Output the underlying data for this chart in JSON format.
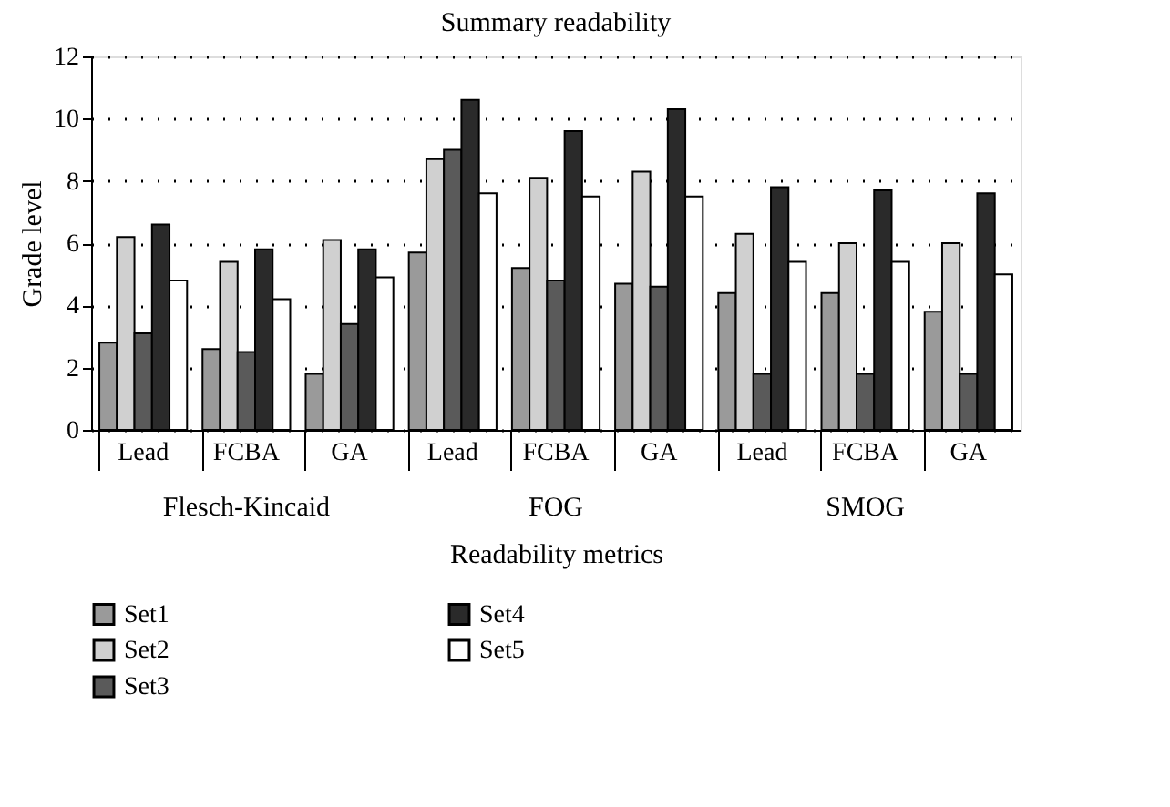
{
  "chart_data": {
    "type": "bar",
    "title": "Summary readability",
    "xlabel": "Readability metrics",
    "ylabel": "Grade level",
    "categories": [
      "Lead",
      "FCBA",
      "GA",
      "Lead",
      "FCBA",
      "GA",
      "Lead",
      "FCBA",
      "GA"
    ],
    "annotations": [
      "Flesch-Kincaid",
      "FOG",
      "SMOG"
    ],
    "series": [
      {
        "name": "Set1",
        "color": "#9a9a9a",
        "values": [
          2.8,
          2.6,
          1.8,
          5.7,
          5.2,
          4.7,
          4.4,
          4.4,
          3.8
        ]
      },
      {
        "name": "Set2",
        "color": "#d0d0d0",
        "values": [
          6.2,
          5.4,
          6.1,
          8.7,
          8.1,
          8.3,
          6.3,
          6.0,
          6.0
        ]
      },
      {
        "name": "Set3",
        "color": "#5a5a5a",
        "values": [
          3.1,
          2.5,
          3.4,
          9.0,
          4.8,
          4.6,
          1.8,
          1.8,
          1.8
        ]
      },
      {
        "name": "Set4",
        "color": "#2a2a2a",
        "values": [
          6.6,
          5.8,
          5.8,
          10.6,
          9.6,
          10.3,
          7.8,
          7.7,
          7.6
        ]
      },
      {
        "name": "Set5",
        "color": "#ffffff",
        "values": [
          4.8,
          4.2,
          4.9,
          7.6,
          7.5,
          7.5,
          5.4,
          5.4,
          5.0
        ]
      }
    ],
    "ylim": [
      0,
      12
    ],
    "yticks": [
      0,
      2,
      4,
      6,
      8,
      10,
      12
    ],
    "grid": "y",
    "legend": "bottom"
  }
}
